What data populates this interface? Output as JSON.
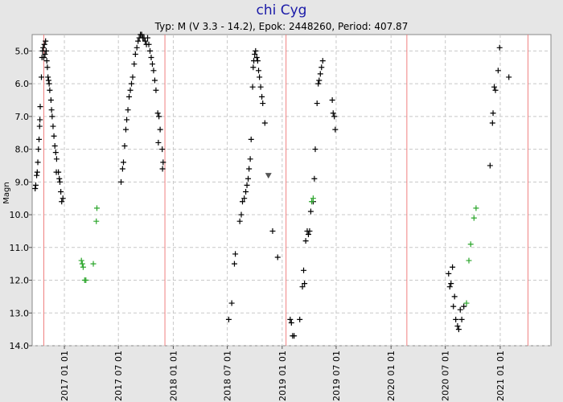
{
  "chart_data": {
    "type": "scatter",
    "title": "chi Cyg",
    "subtitle": "Typ: M (V 3.3 - 14.2), Epok: 2448260, Period: 407.87",
    "xlabel": "",
    "ylabel": "Magn",
    "xlim": [
      "2016-09-15",
      "2021-06-20"
    ],
    "ylim": [
      4.5,
      14.0
    ],
    "y_inverted": true,
    "yticks": [
      5.0,
      6.0,
      7.0,
      8.0,
      9.0,
      10.0,
      11.0,
      12.0,
      13.0,
      14.0
    ],
    "xticks": [
      "2017 01 01",
      "2017 07 01",
      "2018 01 01",
      "2018 07 01",
      "2019 01 01",
      "2019 07 01",
      "2020 01 01",
      "2020 07 01",
      "2021 01 01"
    ],
    "maxima_lines": [
      "2016-10-24",
      "2017-12-04",
      "2019-01-14",
      "2020-02-23",
      "2021-04-04"
    ],
    "grid": true,
    "legend": "none",
    "colors": {
      "visual": "#000000",
      "green_filter": "#2aa52a",
      "fainter_than": "#555555",
      "maxima_line": "#f08080",
      "grid": "#c8c8c8",
      "title": "#1a1aa8",
      "plot_bg": "#ffffff",
      "page_bg": "#e6e6e6"
    },
    "series": [
      {
        "marker": "plus",
        "color": "#000000",
        "points": [
          [
            "2016-09-25",
            9.2
          ],
          [
            "2016-09-27",
            9.1
          ],
          [
            "2016-09-30",
            8.8
          ],
          [
            "2016-10-02",
            8.7
          ],
          [
            "2016-10-04",
            8.4
          ],
          [
            "2016-10-06",
            8.0
          ],
          [
            "2016-10-08",
            7.7
          ],
          [
            "2016-10-10",
            7.3
          ],
          [
            "2016-10-11",
            7.1
          ],
          [
            "2016-10-12",
            6.7
          ],
          [
            "2016-10-16",
            5.8
          ],
          [
            "2016-10-18",
            5.2
          ],
          [
            "2016-10-20",
            5.0
          ],
          [
            "2016-10-22",
            4.9
          ],
          [
            "2016-10-24",
            5.2
          ],
          [
            "2016-10-26",
            4.8
          ],
          [
            "2016-10-28",
            5.1
          ],
          [
            "2016-10-30",
            4.7
          ],
          [
            "2016-11-01",
            5.0
          ],
          [
            "2016-11-03",
            5.3
          ],
          [
            "2016-11-05",
            5.5
          ],
          [
            "2016-11-07",
            5.8
          ],
          [
            "2016-11-09",
            5.9
          ],
          [
            "2016-11-11",
            6.0
          ],
          [
            "2016-11-13",
            6.2
          ],
          [
            "2016-11-17",
            6.5
          ],
          [
            "2016-11-19",
            6.8
          ],
          [
            "2016-11-21",
            7.0
          ],
          [
            "2016-11-24",
            7.3
          ],
          [
            "2016-11-27",
            7.6
          ],
          [
            "2016-11-30",
            7.9
          ],
          [
            "2016-12-03",
            8.1
          ],
          [
            "2016-12-06",
            8.3
          ],
          [
            "2016-12-05",
            8.7
          ],
          [
            "2016-12-12",
            8.7
          ],
          [
            "2016-12-15",
            8.9
          ],
          [
            "2016-12-17",
            9.0
          ],
          [
            "2016-12-20",
            9.3
          ],
          [
            "2016-12-23",
            9.6
          ],
          [
            "2016-12-27",
            9.5
          ],
          [
            "2017-07-10",
            9.0
          ],
          [
            "2017-07-15",
            8.6
          ],
          [
            "2017-07-18",
            8.4
          ],
          [
            "2017-07-22",
            7.9
          ],
          [
            "2017-07-26",
            7.4
          ],
          [
            "2017-07-29",
            7.1
          ],
          [
            "2017-08-02",
            6.8
          ],
          [
            "2017-08-06",
            6.4
          ],
          [
            "2017-08-10",
            6.2
          ],
          [
            "2017-08-14",
            6.0
          ],
          [
            "2017-08-18",
            5.8
          ],
          [
            "2017-08-23",
            5.4
          ],
          [
            "2017-08-27",
            5.1
          ],
          [
            "2017-09-01",
            4.9
          ],
          [
            "2017-09-05",
            4.7
          ],
          [
            "2017-09-09",
            4.6
          ],
          [
            "2017-09-13",
            4.5
          ],
          [
            "2017-09-17",
            4.5
          ],
          [
            "2017-09-21",
            4.6
          ],
          [
            "2017-09-25",
            4.6
          ],
          [
            "2017-09-29",
            4.7
          ],
          [
            "2017-10-03",
            4.8
          ],
          [
            "2017-10-07",
            4.6
          ],
          [
            "2017-10-11",
            4.8
          ],
          [
            "2017-10-15",
            5.0
          ],
          [
            "2017-10-19",
            5.2
          ],
          [
            "2017-10-23",
            5.4
          ],
          [
            "2017-10-27",
            5.6
          ],
          [
            "2017-10-31",
            5.9
          ],
          [
            "2017-11-04",
            6.2
          ],
          [
            "2017-11-10",
            6.9
          ],
          [
            "2017-11-14",
            7.0
          ],
          [
            "2017-11-18",
            7.4
          ],
          [
            "2017-11-12",
            7.8
          ],
          [
            "2017-11-25",
            8.0
          ],
          [
            "2017-11-28",
            8.4
          ],
          [
            "2017-11-26",
            8.6
          ],
          [
            "2018-07-06",
            13.2
          ],
          [
            "2018-07-16",
            12.7
          ],
          [
            "2018-07-25",
            11.5
          ],
          [
            "2018-07-28",
            11.2
          ],
          [
            "2018-08-12",
            10.2
          ],
          [
            "2018-08-17",
            10.0
          ],
          [
            "2018-08-21",
            9.6
          ],
          [
            "2018-08-27",
            9.5
          ],
          [
            "2018-09-01",
            9.3
          ],
          [
            "2018-09-05",
            9.1
          ],
          [
            "2018-09-09",
            8.9
          ],
          [
            "2018-09-12",
            8.6
          ],
          [
            "2018-09-16",
            8.3
          ],
          [
            "2018-09-19",
            7.7
          ],
          [
            "2018-09-24",
            6.1
          ],
          [
            "2018-09-26",
            5.5
          ],
          [
            "2018-09-28",
            5.3
          ],
          [
            "2018-10-01",
            5.1
          ],
          [
            "2018-10-04",
            5.0
          ],
          [
            "2018-10-08",
            5.2
          ],
          [
            "2018-10-11",
            5.3
          ],
          [
            "2018-10-14",
            5.6
          ],
          [
            "2018-10-17",
            5.8
          ],
          [
            "2018-10-21",
            6.1
          ],
          [
            "2018-10-25",
            6.4
          ],
          [
            "2018-10-28",
            6.6
          ],
          [
            "2018-11-04",
            7.2
          ],
          [
            "2018-11-30",
            10.5
          ],
          [
            "2018-12-17",
            11.3
          ],
          [
            "2019-01-28",
            13.2
          ],
          [
            "2019-02-01",
            13.3
          ],
          [
            "2019-02-05",
            13.7
          ],
          [
            "2019-02-10",
            13.7
          ],
          [
            "2019-03-01",
            13.2
          ],
          [
            "2019-03-10",
            12.2
          ],
          [
            "2019-03-14",
            11.7
          ],
          [
            "2019-03-17",
            12.1
          ],
          [
            "2019-03-21",
            10.8
          ],
          [
            "2019-03-26",
            10.5
          ],
          [
            "2019-03-30",
            10.6
          ],
          [
            "2019-04-03",
            10.5
          ],
          [
            "2019-04-07",
            9.9
          ],
          [
            "2019-04-15",
            9.6
          ],
          [
            "2019-04-19",
            8.9
          ],
          [
            "2019-04-22",
            8.0
          ],
          [
            "2019-04-28",
            6.6
          ],
          [
            "2019-05-02",
            6.0
          ],
          [
            "2019-05-05",
            5.9
          ],
          [
            "2019-05-09",
            5.7
          ],
          [
            "2019-05-13",
            5.5
          ],
          [
            "2019-05-17",
            5.3
          ],
          [
            "2019-06-18",
            6.5
          ],
          [
            "2019-06-21",
            6.9
          ],
          [
            "2019-06-25",
            7.0
          ],
          [
            "2019-06-28",
            7.4
          ],
          [
            "2020-07-12",
            11.8
          ],
          [
            "2020-07-16",
            12.2
          ],
          [
            "2020-07-20",
            12.1
          ],
          [
            "2020-07-25",
            11.6
          ],
          [
            "2020-07-28",
            12.8
          ],
          [
            "2020-08-01",
            12.5
          ],
          [
            "2020-08-05",
            13.2
          ],
          [
            "2020-08-11",
            13.4
          ],
          [
            "2020-08-15",
            13.5
          ],
          [
            "2020-08-20",
            12.9
          ],
          [
            "2020-08-25",
            13.2
          ],
          [
            "2020-09-01",
            12.8
          ],
          [
            "2020-11-28",
            8.5
          ],
          [
            "2020-12-06",
            7.2
          ],
          [
            "2020-12-08",
            6.9
          ],
          [
            "2020-12-12",
            6.1
          ],
          [
            "2020-12-16",
            6.2
          ],
          [
            "2020-12-25",
            5.6
          ],
          [
            "2020-12-30",
            4.9
          ],
          [
            "2021-01-30",
            5.8
          ]
        ]
      },
      {
        "marker": "plus",
        "color": "#2aa52a",
        "points": [
          [
            "2017-02-27",
            11.4
          ],
          [
            "2017-03-02",
            11.5
          ],
          [
            "2017-03-05",
            11.6
          ],
          [
            "2017-03-10",
            12.0
          ],
          [
            "2017-03-14",
            12.0
          ],
          [
            "2017-04-08",
            11.5
          ],
          [
            "2017-04-18",
            10.2
          ],
          [
            "2017-04-20",
            9.8
          ],
          [
            "2019-04-10",
            9.6
          ],
          [
            "2019-04-15",
            9.5
          ],
          [
            "2020-09-10",
            12.7
          ],
          [
            "2020-09-18",
            11.4
          ],
          [
            "2020-09-24",
            10.9
          ],
          [
            "2020-10-05",
            10.1
          ],
          [
            "2020-10-12",
            9.8
          ]
        ]
      },
      {
        "marker": "triangle-down",
        "color": "#555555",
        "points": [
          [
            "2018-11-16",
            8.8
          ]
        ]
      }
    ]
  }
}
